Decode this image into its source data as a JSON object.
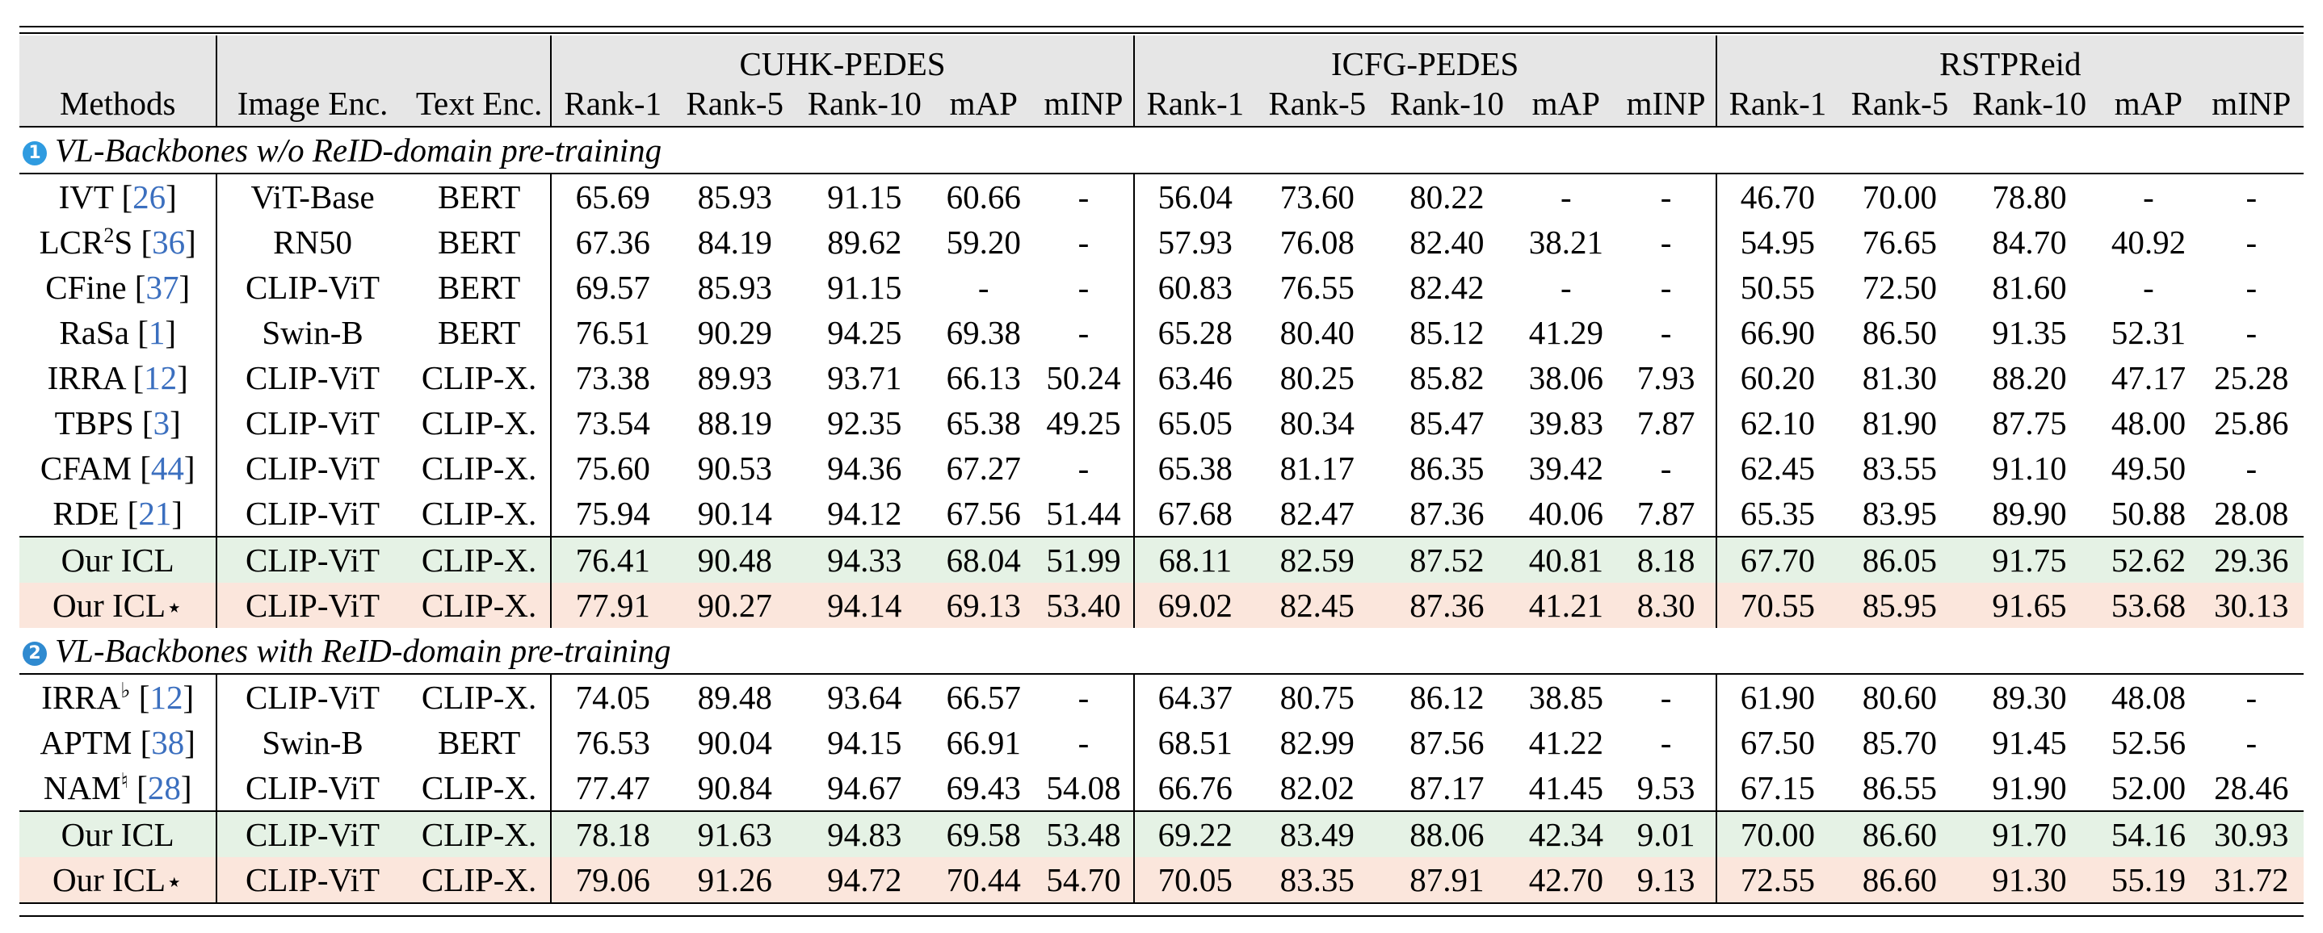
{
  "header": {
    "group1": "CUHK-PEDES",
    "group2": "ICFG-PEDES",
    "group3": "RSTPReid",
    "methods": "Methods",
    "image_enc": "Image Enc.",
    "text_enc": "Text Enc.",
    "metrics": [
      "Rank-1",
      "Rank-5",
      "Rank-10",
      "mAP",
      "mINP"
    ]
  },
  "colors": {
    "green_row": "#e5f2e5",
    "peach_row": "#fbe6dc",
    "header_bg": "#e6e6e6",
    "cite": "#3b6fbf"
  },
  "sections": [
    {
      "badge": "1",
      "title": "VL-Backbones w/o ReID-domain pre-training",
      "rows": [
        {
          "name": "IVT",
          "sup": "",
          "cite": "26",
          "img": "ViT-Base",
          "txt": "BERT",
          "highlight": "",
          "vals": [
            "65.69",
            "85.93",
            "91.15",
            "60.66",
            "-",
            "56.04",
            "73.60",
            "80.22",
            "-",
            "-",
            "46.70",
            "70.00",
            "78.80",
            "-",
            "-"
          ]
        },
        {
          "name": "LCR",
          "sup": "2",
          "suffix": "S",
          "cite": "36",
          "img": "RN50",
          "txt": "BERT",
          "highlight": "",
          "vals": [
            "67.36",
            "84.19",
            "89.62",
            "59.20",
            "-",
            "57.93",
            "76.08",
            "82.40",
            "38.21",
            "-",
            "54.95",
            "76.65",
            "84.70",
            "40.92",
            "-"
          ]
        },
        {
          "name": "CFine",
          "sup": "",
          "cite": "37",
          "img": "CLIP-ViT",
          "txt": "BERT",
          "highlight": "",
          "vals": [
            "69.57",
            "85.93",
            "91.15",
            "-",
            "-",
            "60.83",
            "76.55",
            "82.42",
            "-",
            "-",
            "50.55",
            "72.50",
            "81.60",
            "-",
            "-"
          ]
        },
        {
          "name": "RaSa",
          "sup": "",
          "cite": "1",
          "img": "Swin-B",
          "txt": "BERT",
          "highlight": "",
          "vals": [
            "76.51",
            "90.29",
            "94.25",
            "69.38",
            "-",
            "65.28",
            "80.40",
            "85.12",
            "41.29",
            "-",
            "66.90",
            "86.50",
            "91.35",
            "52.31",
            "-"
          ]
        },
        {
          "name": "IRRA",
          "sup": "",
          "cite": "12",
          "img": "CLIP-ViT",
          "txt": "CLIP-X.",
          "highlight": "",
          "vals": [
            "73.38",
            "89.93",
            "93.71",
            "66.13",
            "50.24",
            "63.46",
            "80.25",
            "85.82",
            "38.06",
            "7.93",
            "60.20",
            "81.30",
            "88.20",
            "47.17",
            "25.28"
          ]
        },
        {
          "name": "TBPS",
          "sup": "",
          "cite": "3",
          "img": "CLIP-ViT",
          "txt": "CLIP-X.",
          "highlight": "",
          "vals": [
            "73.54",
            "88.19",
            "92.35",
            "65.38",
            "49.25",
            "65.05",
            "80.34",
            "85.47",
            "39.83",
            "7.87",
            "62.10",
            "81.90",
            "87.75",
            "48.00",
            "25.86"
          ]
        },
        {
          "name": "CFAM",
          "sup": "",
          "cite": "44",
          "img": "CLIP-ViT",
          "txt": "CLIP-X.",
          "highlight": "",
          "vals": [
            "75.60",
            "90.53",
            "94.36",
            "67.27",
            "-",
            "65.38",
            "81.17",
            "86.35",
            "39.42",
            "-",
            "62.45",
            "83.55",
            "91.10",
            "49.50",
            "-"
          ]
        },
        {
          "name": "RDE",
          "sup": "",
          "cite": "21",
          "img": "CLIP-ViT",
          "txt": "CLIP-X.",
          "highlight": "",
          "vals": [
            "75.94",
            "90.14",
            "94.12",
            "67.56",
            "51.44",
            "67.68",
            "82.47",
            "87.36",
            "40.06",
            "7.87",
            "65.35",
            "83.95",
            "89.90",
            "50.88",
            "28.08"
          ]
        },
        {
          "name": "Our ICL",
          "sup": "",
          "cite": "",
          "img": "CLIP-ViT",
          "txt": "CLIP-X.",
          "highlight": "green",
          "vals": [
            "76.41",
            "90.48",
            "94.33",
            "68.04",
            "51.99",
            "68.11",
            "82.59",
            "87.52",
            "40.81",
            "8.18",
            "67.70",
            "86.05",
            "91.75",
            "52.62",
            "29.36"
          ]
        },
        {
          "name": "Our ICL",
          "star": "⋆",
          "sup": "",
          "cite": "",
          "img": "CLIP-ViT",
          "txt": "CLIP-X.",
          "highlight": "peach",
          "vals": [
            "77.91",
            "90.27",
            "94.14",
            "69.13",
            "53.40",
            "69.02",
            "82.45",
            "87.36",
            "41.21",
            "8.30",
            "70.55",
            "85.95",
            "91.65",
            "53.68",
            "30.13"
          ]
        }
      ]
    },
    {
      "badge": "2",
      "title": "VL-Backbones with ReID-domain pre-training",
      "rows": [
        {
          "name": "IRRA",
          "sup": "♭",
          "cite": "12",
          "img": "CLIP-ViT",
          "txt": "CLIP-X.",
          "highlight": "",
          "vals": [
            "74.05",
            "89.48",
            "93.64",
            "66.57",
            "-",
            "64.37",
            "80.75",
            "86.12",
            "38.85",
            "-",
            "61.90",
            "80.60",
            "89.30",
            "48.08",
            "-"
          ]
        },
        {
          "name": "APTM",
          "sup": "",
          "cite": "38",
          "img": "Swin-B",
          "txt": "BERT",
          "highlight": "",
          "vals": [
            "76.53",
            "90.04",
            "94.15",
            "66.91",
            "-",
            "68.51",
            "82.99",
            "87.56",
            "41.22",
            "-",
            "67.50",
            "85.70",
            "91.45",
            "52.56",
            "-"
          ]
        },
        {
          "name": "NAM",
          "sup": "♮",
          "cite": "28",
          "img": "CLIP-ViT",
          "txt": "CLIP-X.",
          "highlight": "",
          "vals": [
            "77.47",
            "90.84",
            "94.67",
            "69.43",
            "54.08",
            "66.76",
            "82.02",
            "87.17",
            "41.45",
            "9.53",
            "67.15",
            "86.55",
            "91.90",
            "52.00",
            "28.46"
          ]
        },
        {
          "name": "Our ICL",
          "sup": "",
          "cite": "",
          "img": "CLIP-ViT",
          "txt": "CLIP-X.",
          "highlight": "green",
          "vals": [
            "78.18",
            "91.63",
            "94.83",
            "69.58",
            "53.48",
            "69.22",
            "83.49",
            "88.06",
            "42.34",
            "9.01",
            "70.00",
            "86.60",
            "91.70",
            "54.16",
            "30.93"
          ]
        },
        {
          "name": "Our ICL",
          "star": "⋆",
          "sup": "",
          "cite": "",
          "img": "CLIP-ViT",
          "txt": "CLIP-X.",
          "highlight": "peach",
          "vals": [
            "79.06",
            "91.26",
            "94.72",
            "70.44",
            "54.70",
            "70.05",
            "83.35",
            "87.91",
            "42.70",
            "9.13",
            "72.55",
            "86.60",
            "91.30",
            "55.19",
            "31.72"
          ]
        }
      ]
    }
  ]
}
